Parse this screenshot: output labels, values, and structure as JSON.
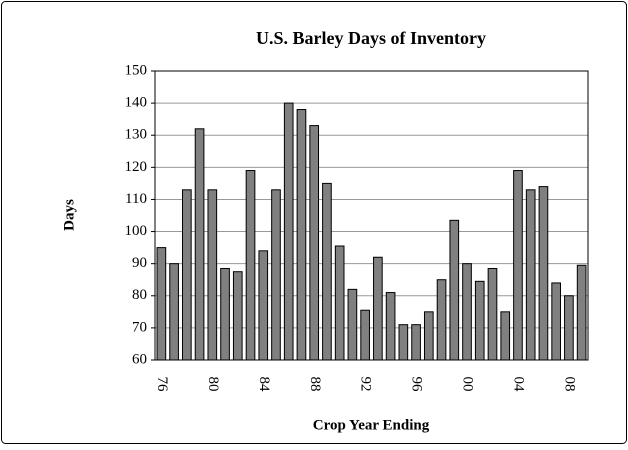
{
  "chart_data": {
    "type": "bar",
    "title": "U.S. Barley Days of Inventory",
    "x_label": "Crop Year Ending",
    "y_label": "Days",
    "categories": [
      "76",
      null,
      null,
      null,
      "80",
      null,
      null,
      null,
      "84",
      null,
      null,
      null,
      "88",
      null,
      null,
      null,
      "92",
      null,
      null,
      null,
      "96",
      null,
      null,
      null,
      "00",
      null,
      null,
      null,
      "04",
      null,
      null,
      null,
      "08",
      null
    ],
    "values": [
      95,
      90,
      113,
      132,
      113,
      88.5,
      87.5,
      119,
      94,
      113,
      140,
      138,
      133,
      115,
      95.5,
      82,
      75.5,
      92,
      81,
      71,
      71,
      75,
      85,
      103.5,
      90,
      84.5,
      88.5,
      75,
      119,
      113,
      114,
      84,
      80,
      89.5
    ],
    "color": "#808080",
    "ylim": [
      60,
      150
    ],
    "yticks": [
      60,
      70,
      80,
      90,
      100,
      110,
      120,
      130,
      140,
      150
    ],
    "grid": true
  }
}
